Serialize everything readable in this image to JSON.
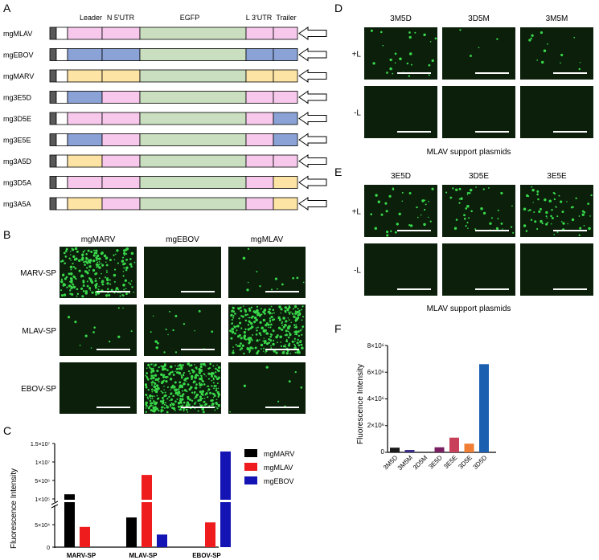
{
  "panels": {
    "A": {
      "letter": "A",
      "headers": [
        "Leader",
        "N 5'UTR",
        "EGFP",
        "L 3'UTR",
        "Trailer"
      ],
      "colors": {
        "dark": "#595959",
        "white": "#ffffff",
        "pink": "#f7c8ec",
        "blue": "#8aa2d6",
        "yellow": "#fde4a4",
        "green": "#c9dfbf"
      },
      "rows": [
        {
          "name": "mgMLAV",
          "seg": [
            "pink",
            "pink",
            "pink",
            "pink"
          ]
        },
        {
          "name": "mgEBOV",
          "seg": [
            "blue",
            "blue",
            "blue",
            "blue"
          ]
        },
        {
          "name": "mgMARV",
          "seg": [
            "yellow",
            "yellow",
            "yellow",
            "yellow"
          ]
        },
        {
          "name": "mg3E5D",
          "seg": [
            "blue",
            "pink",
            "pink",
            "pink"
          ]
        },
        {
          "name": "mg3D5E",
          "seg": [
            "pink",
            "pink",
            "pink",
            "blue"
          ]
        },
        {
          "name": "mg3E5E",
          "seg": [
            "blue",
            "pink",
            "pink",
            "blue"
          ]
        },
        {
          "name": "mg3A5D",
          "seg": [
            "yellow",
            "pink",
            "pink",
            "pink"
          ]
        },
        {
          "name": "mg3D5A",
          "seg": [
            "pink",
            "pink",
            "pink",
            "yellow"
          ]
        },
        {
          "name": "mg3A5A",
          "seg": [
            "yellow",
            "pink",
            "pink",
            "yellow"
          ]
        }
      ]
    },
    "B": {
      "letter": "B",
      "columns": [
        "mgMARV",
        "mgEBOV",
        "mgMLAV"
      ],
      "rows": [
        "MARV-SP",
        "MLAV-SP",
        "EBOV-SP"
      ],
      "density": [
        [
          0.55,
          0.0,
          0.03
        ],
        [
          0.03,
          0.04,
          0.75
        ],
        [
          0.0,
          1.0,
          0.02
        ]
      ]
    },
    "C": {
      "letter": "C",
      "ylabel": "Fluorescence Intensity",
      "upper_ticks": [
        "1.5×10⁷",
        "1×10⁷",
        "5×10⁶",
        "1×10⁵"
      ],
      "lower_ticks": [
        "5×10⁴",
        "0"
      ]
    },
    "D": {
      "letter": "D",
      "columns": [
        "3M5D",
        "3D5M",
        "3M5M"
      ],
      "rows": [
        "+L",
        "-L"
      ],
      "density": [
        [
          0.06,
          0.01,
          0.03
        ],
        [
          0.0,
          0.0,
          0.0
        ]
      ],
      "caption": "MLAV support plasmids"
    },
    "E": {
      "letter": "E",
      "columns": [
        "3E5D",
        "3D5E",
        "3E5E"
      ],
      "rows": [
        "+L",
        "-L"
      ],
      "density": [
        [
          0.08,
          0.1,
          0.15
        ],
        [
          0.0,
          0.0,
          0.0
        ]
      ],
      "caption": "MLAV support plasmids"
    },
    "F": {
      "letter": "F",
      "ylabel": "Fluorescence Intensity",
      "ticks": [
        "8×10⁶",
        "6×10⁶",
        "4×10⁶",
        "2×10⁶",
        "0"
      ]
    }
  },
  "chart_data": [
    {
      "type": "bar",
      "panel": "C",
      "ylabel": "Fluorescence Intensity",
      "categories": [
        "MARV-SP",
        "MLAV-SP",
        "EBOV-SP"
      ],
      "y_axis_break": [
        100000,
        100000
      ],
      "series": [
        {
          "name": "mgMARV",
          "color": "#000000",
          "values": [
            2000000,
            66000,
            0
          ]
        },
        {
          "name": "mgMLAV",
          "color": "#ee1c1c",
          "values": [
            45000,
            7200000,
            55000
          ]
        },
        {
          "name": "mgEBOV",
          "color": "#1414b4",
          "values": [
            0,
            28000,
            13500000
          ]
        }
      ],
      "ylim_lower": [
        0,
        100000
      ],
      "ylim_upper": [
        100000,
        15000000
      ],
      "legend": "top-right"
    },
    {
      "type": "bar",
      "panel": "F",
      "ylabel": "Fluorescence Intensity",
      "categories": [
        "3M5D",
        "3M5M",
        "3D5M",
        "3E5D",
        "3E5E",
        "3D5E",
        "3D5D"
      ],
      "values": [
        350000,
        100000,
        0,
        380000,
        1100000,
        650000,
        6600000
      ],
      "colors": [
        "#1a1a1a",
        "#3a2f8a",
        "#3a2f8a",
        "#7a1f62",
        "#c8405a",
        "#f07f35",
        "#1a5fb0"
      ],
      "ylim": [
        0,
        8000000
      ]
    }
  ]
}
